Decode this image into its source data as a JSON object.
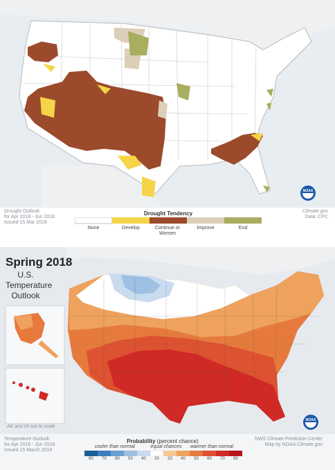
{
  "drought": {
    "legend_title": "Drought Tendency",
    "categories": [
      {
        "label": "None",
        "color": "#ffffff"
      },
      {
        "label": "Develop",
        "color": "#f5d547"
      },
      {
        "label": "Continue or Worsen",
        "color": "#9c4a2c"
      },
      {
        "label": "Improve",
        "color": "#dccfb7"
      },
      {
        "label": "End",
        "color": "#a9ad5e"
      }
    ],
    "caption_lines": [
      "Drought Outlook",
      "for Apr 2018 - Jun 2018",
      "Issued 15 Mar 2018"
    ],
    "credit_lines": [
      "Climate.gov",
      "Data: CPC"
    ]
  },
  "temperature": {
    "title": "Spring 2018",
    "subtitle_lines": [
      "U.S.",
      "Temperature",
      "Outlook"
    ],
    "inset_note": "AK and HI not to scale",
    "caption_lines": [
      "Temperature Outlook",
      "for Apr 2018 - Jun 2018",
      "Issued 15 March 2018"
    ],
    "credit_lines": [
      "NWS Climate Prediction Center",
      "Map by NOAA Climate.gov"
    ],
    "legend": {
      "title": "Probability",
      "subtitle": "(percent chance)",
      "label_cooler": "cooler than normal",
      "label_equal": "equal chances",
      "label_warmer": "warmer than normal",
      "ticks": [
        "80",
        "70",
        "60",
        "50",
        "40",
        "33",
        "33",
        "40",
        "50",
        "60",
        "70",
        "80"
      ],
      "colors": [
        "#1b5e98",
        "#3a7fbf",
        "#6a9fd2",
        "#9dc0e3",
        "#c8dbef",
        "#ffffff",
        "#f5c993",
        "#eea25d",
        "#e67a3d",
        "#dd5230",
        "#cf2a25",
        "#b8141c"
      ]
    }
  },
  "noaa_label": "NOAA"
}
